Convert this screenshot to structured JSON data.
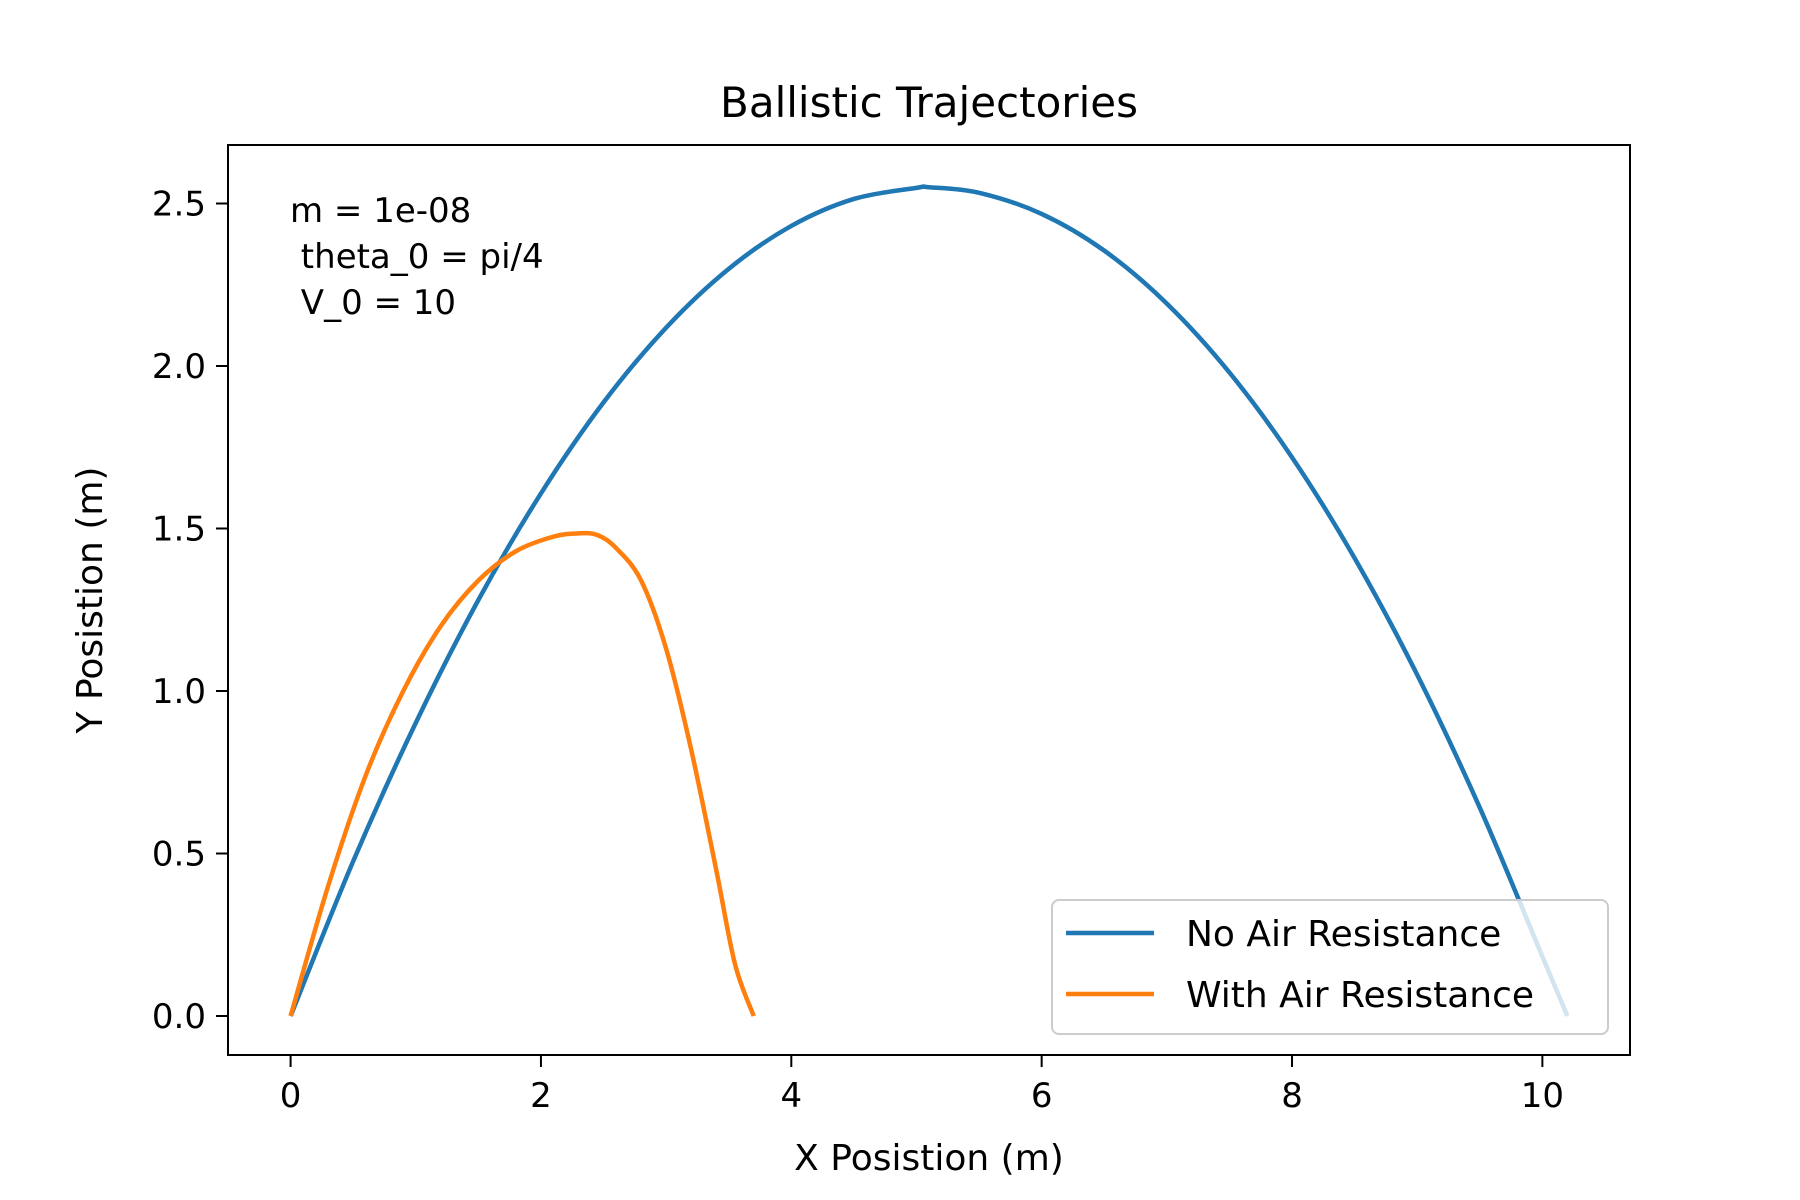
{
  "chart_data": {
    "type": "line",
    "title": "Ballistic Trajectories",
    "xlabel": "X Posistion (m)",
    "ylabel": "Y Posistion (m)",
    "xlim": [
      -0.5,
      10.7
    ],
    "ylim": [
      -0.12,
      2.68
    ],
    "xticks": [
      0,
      2,
      4,
      6,
      8,
      10
    ],
    "yticks": [
      0.0,
      0.5,
      1.0,
      1.5,
      2.0,
      2.5
    ],
    "xtick_labels": [
      "0",
      "2",
      "4",
      "6",
      "8",
      "10"
    ],
    "ytick_labels": [
      "0.0",
      "0.5",
      "1.0",
      "1.5",
      "2.0",
      "2.5"
    ],
    "grid": false,
    "legend_position": "lower-right",
    "annotation": {
      "line1": "m = 1e-08",
      "line2": " theta_0 = pi/4",
      "line3": " V_0 = 10"
    },
    "series": [
      {
        "name": "No Air Resistance",
        "color": "#1f77b4",
        "x": [
          0,
          0.5,
          1.0,
          1.5,
          2.0,
          2.5,
          3.0,
          3.5,
          4.0,
          4.5,
          5.0,
          5.1,
          5.5,
          6.0,
          6.5,
          7.0,
          7.5,
          8.0,
          8.5,
          9.0,
          9.5,
          10.0,
          10.2
        ],
        "y": [
          0,
          0.476,
          0.902,
          1.28,
          1.608,
          1.888,
          2.118,
          2.299,
          2.431,
          2.514,
          2.548,
          2.55,
          2.533,
          2.468,
          2.355,
          2.192,
          1.98,
          1.719,
          1.409,
          1.05,
          0.641,
          0.183,
          0.0
        ]
      },
      {
        "name": "With Air Resistance",
        "color": "#ff7f0e",
        "x": [
          0,
          0.3,
          0.6,
          0.9,
          1.2,
          1.5,
          1.8,
          2.1,
          2.3,
          2.45,
          2.6,
          2.8,
          3.0,
          3.2,
          3.4,
          3.55,
          3.7
        ],
        "y": [
          0,
          0.4,
          0.74,
          1.0,
          1.2,
          1.34,
          1.43,
          1.475,
          1.485,
          1.48,
          1.44,
          1.34,
          1.13,
          0.82,
          0.45,
          0.16,
          0.0
        ]
      }
    ]
  }
}
